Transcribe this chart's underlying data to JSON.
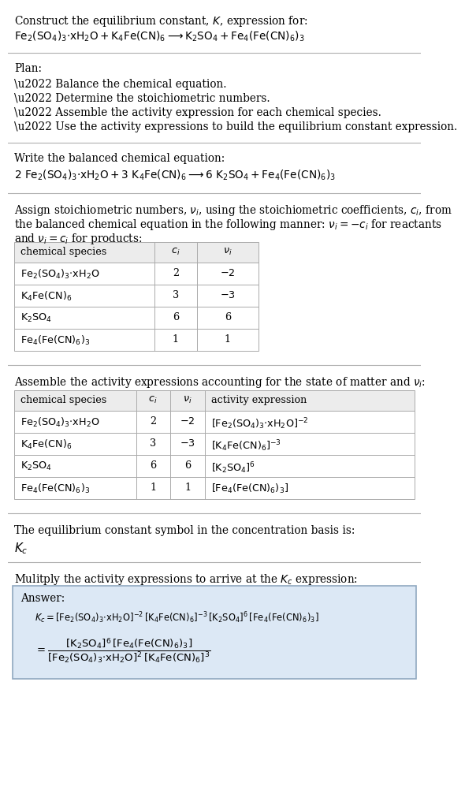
{
  "bg_color": "#ffffff",
  "text_color": "#000000",
  "title_line1": "Construct the equilibrium constant, $K$, expression for:",
  "title_line2": "$\\mathrm{Fe_2(SO_4)_3{\\cdot}xH_2O + K_4Fe(CN)_6 \\longrightarrow K_2SO_4 + Fe_4(Fe(CN)_6)_3}$",
  "plan_header": "Plan:",
  "plan_bullets": [
    "\\u2022 Balance the chemical equation.",
    "\\u2022 Determine the stoichiometric numbers.",
    "\\u2022 Assemble the activity expression for each chemical species.",
    "\\u2022 Use the activity expressions to build the equilibrium constant expression."
  ],
  "balanced_header": "Write the balanced chemical equation:",
  "balanced_eq": "$\\mathrm{2\\ Fe_2(SO_4)_3{\\cdot}xH_2O + 3\\ K_4Fe(CN)_6 \\longrightarrow 6\\ K_2SO_4 + Fe_4(Fe(CN)_6)_3}$",
  "stoich_line1": "Assign stoichiometric numbers, $\\nu_i$, using the stoichiometric coefficients, $c_i$, from",
  "stoich_line2": "the balanced chemical equation in the following manner: $\\nu_i = -c_i$ for reactants",
  "stoich_line3": "and $\\nu_i = c_i$ for products:",
  "table1_headers": [
    "chemical species",
    "$c_i$",
    "$\\nu_i$"
  ],
  "table1_rows": [
    [
      "$\\mathrm{Fe_2(SO_4)_3{\\cdot}xH_2O}$",
      "2",
      "$-2$"
    ],
    [
      "$\\mathrm{K_4Fe(CN)_6}$",
      "3",
      "$-3$"
    ],
    [
      "$\\mathrm{K_2SO_4}$",
      "6",
      "6"
    ],
    [
      "$\\mathrm{Fe_4(Fe(CN)_6)_3}$",
      "1",
      "1"
    ]
  ],
  "activity_header": "Assemble the activity expressions accounting for the state of matter and $\\nu_i$:",
  "table2_headers": [
    "chemical species",
    "$c_i$",
    "$\\nu_i$",
    "activity expression"
  ],
  "table2_rows": [
    [
      "$\\mathrm{Fe_2(SO_4)_3{\\cdot}xH_2O}$",
      "2",
      "$-2$",
      "$[\\mathrm{Fe_2(SO_4)_3{\\cdot}xH_2O}]^{-2}$"
    ],
    [
      "$\\mathrm{K_4Fe(CN)_6}$",
      "3",
      "$-3$",
      "$[\\mathrm{K_4Fe(CN)_6}]^{-3}$"
    ],
    [
      "$\\mathrm{K_2SO_4}$",
      "6",
      "6",
      "$[\\mathrm{K_2SO_4}]^6$"
    ],
    [
      "$\\mathrm{Fe_4(Fe(CN)_6)_3}$",
      "1",
      "1",
      "$[\\mathrm{Fe_4(Fe(CN)_6)_3}]$"
    ]
  ],
  "kc_header": "The equilibrium constant symbol in the concentration basis is:",
  "kc_symbol": "$K_c$",
  "multiply_header": "Mulitply the activity expressions to arrive at the $K_c$ expression:",
  "answer_label": "Answer:",
  "answer_eq1": "$K_c = [\\mathrm{Fe_2(SO_4)_3{\\cdot}xH_2O}]^{-2}\\,[\\mathrm{K_4Fe(CN)_6}]^{-3}\\,[\\mathrm{K_2SO_4}]^6\\,[\\mathrm{Fe_4(Fe(CN)_6)_3}]$",
  "answer_eq2": "$= \\dfrac{[\\mathrm{K_2SO_4}]^6\\,[\\mathrm{Fe_4(Fe(CN)_6)_3}]}{[\\mathrm{Fe_2(SO_4)_3{\\cdot}xH_2O}]^2\\,[\\mathrm{K_4Fe(CN)_6}]^3}$",
  "sep_color": "#b0b0b0",
  "table_head_bg": "#ececec",
  "table_row_bg": "#ffffff",
  "answer_bg": "#dce8f5",
  "answer_border": "#90a8c0",
  "font_size": 9.8,
  "font_size_table": 9.2
}
